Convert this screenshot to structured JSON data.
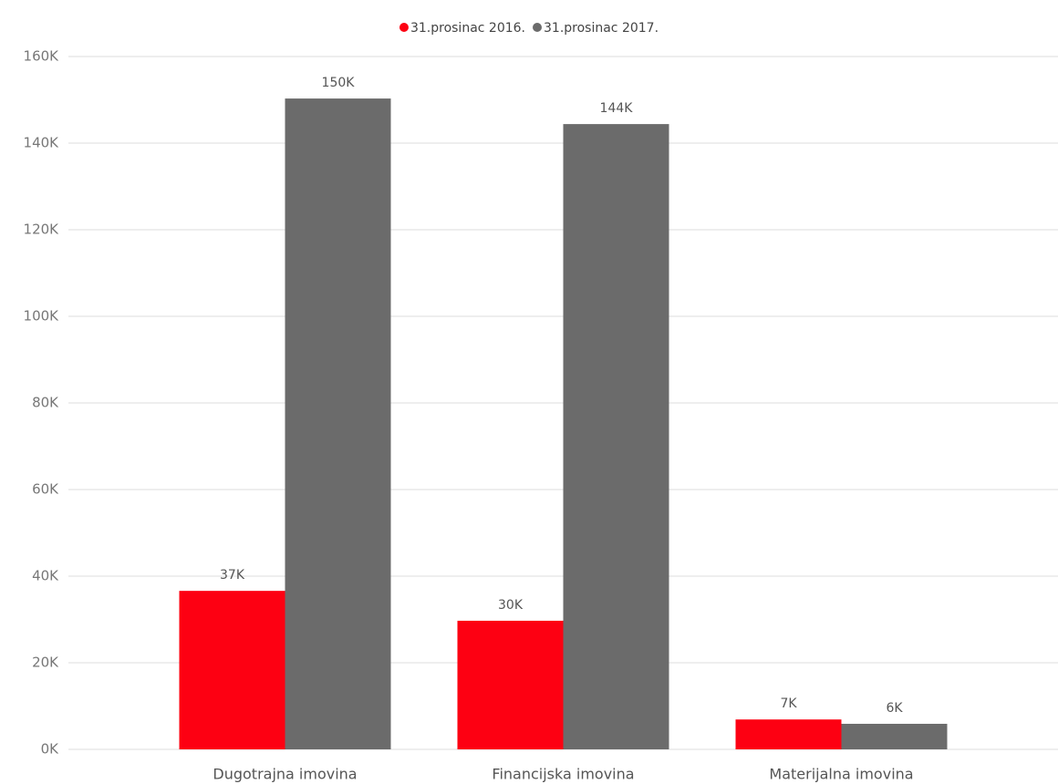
{
  "chart_data": {
    "type": "bar",
    "categories": [
      "Dugotrajna imovina",
      "Financijska imovina",
      "Materijalna imovina"
    ],
    "series": [
      {
        "name": "31.prosinac 2016.",
        "color": "#fd0012",
        "values": [
          36600,
          29700,
          6900
        ],
        "value_labels": [
          "37K",
          "30K",
          "7K"
        ]
      },
      {
        "name": "31.prosinac 2017.",
        "color": "#6b6b6b",
        "values": [
          150300,
          144400,
          5900
        ],
        "value_labels": [
          "150K",
          "144K",
          "6K"
        ]
      }
    ],
    "ylim": [
      0,
      160000
    ],
    "yticks": [
      {
        "value": 0,
        "label": "0K"
      },
      {
        "value": 20000,
        "label": "20K"
      },
      {
        "value": 40000,
        "label": "40K"
      },
      {
        "value": 60000,
        "label": "60K"
      },
      {
        "value": 80000,
        "label": "80K"
      },
      {
        "value": 100000,
        "label": "100K"
      },
      {
        "value": 120000,
        "label": "120K"
      },
      {
        "value": 140000,
        "label": "140K"
      },
      {
        "value": 160000,
        "label": "160K"
      }
    ],
    "grid": true,
    "legend": "top"
  }
}
